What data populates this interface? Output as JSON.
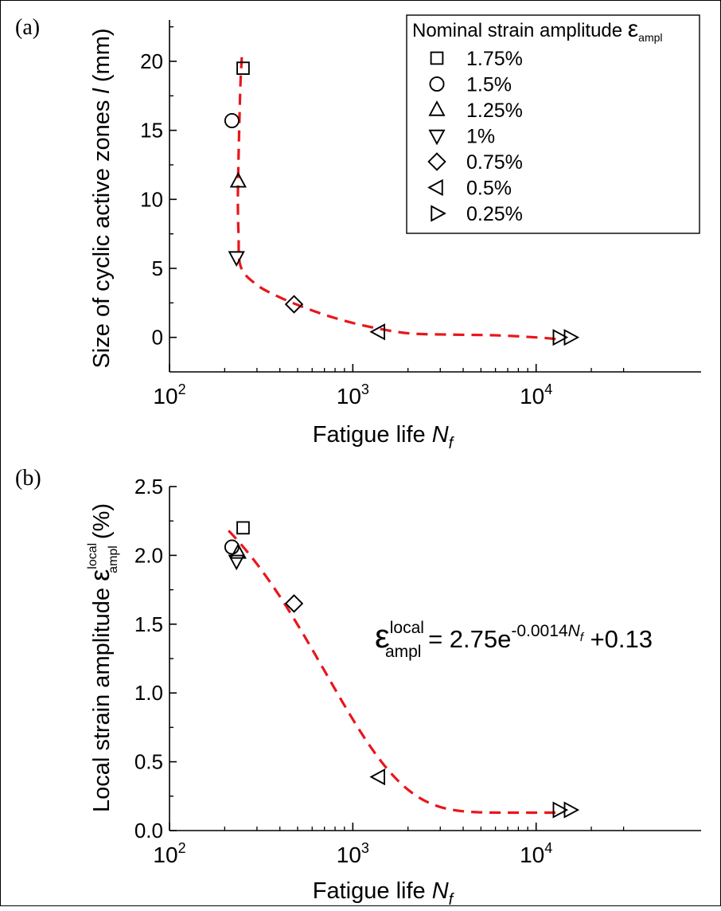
{
  "chart_data": [
    {
      "panel": "(a)",
      "type": "scatter",
      "xscale": "log",
      "xlim": [
        100,
        30000
      ],
      "ylim": [
        -2.5,
        23
      ],
      "xlabel": "Fatigue life",
      "xlabel_var": "N",
      "xlabel_sub": "f",
      "ylabel": "Size of cyclic active zones",
      "ylabel_var": "l",
      "ylabel_unit": "(mm)",
      "xticks": [
        100,
        1000,
        10000
      ],
      "xtick_labels": [
        {
          "base": "10",
          "exp": "2"
        },
        {
          "base": "10",
          "exp": "3"
        },
        {
          "base": "10",
          "exp": "4"
        }
      ],
      "yticks": [
        0,
        5,
        10,
        15,
        20
      ],
      "ytick_labels": [
        "0",
        "5",
        "10",
        "15",
        "20"
      ],
      "legend": {
        "title": "Nominal strain amplitude ",
        "title_symbol": "ε",
        "title_sub": "ampl",
        "placement": "top-right"
      },
      "series": [
        {
          "name": "1.75%",
          "marker": "square",
          "x": [
            252
          ],
          "y": [
            19.5
          ]
        },
        {
          "name": "1.5%",
          "marker": "circle",
          "x": [
            219
          ],
          "y": [
            15.7
          ]
        },
        {
          "name": "1.25%",
          "marker": "triangle-up",
          "x": [
            237
          ],
          "y": [
            11.3
          ]
        },
        {
          "name": "1%",
          "marker": "triangle-down",
          "x": [
            232
          ],
          "y": [
            5.8
          ]
        },
        {
          "name": "0.75%",
          "marker": "diamond",
          "x": [
            478
          ],
          "y": [
            2.4
          ]
        },
        {
          "name": "0.5%",
          "marker": "triangle-left",
          "x": [
            1390
          ],
          "y": [
            0.4
          ]
        },
        {
          "name": "0.25%",
          "marker": "triangle-right",
          "x": [
            13300,
            15300
          ],
          "y": [
            0,
            0
          ]
        }
      ],
      "fit": {
        "color": "#e8161b",
        "style": "dashed",
        "x": [
          248,
          244,
          241,
          238,
          236,
          238,
          245,
          300,
          400,
          560,
          800,
          1200,
          2000,
          3500,
          6000,
          10000,
          13500
        ],
        "y": [
          20.3,
          18.5,
          16.0,
          13.0,
          10.0,
          7.5,
          5.1,
          3.8,
          2.9,
          2.1,
          1.4,
          0.8,
          0.3,
          0.2,
          0.15,
          0,
          -0.15
        ]
      }
    },
    {
      "panel": "(b)",
      "type": "scatter",
      "xscale": "log",
      "xlim": [
        100,
        30000
      ],
      "ylim": [
        0,
        2.5
      ],
      "xlabel": "Fatigue life",
      "xlabel_var": "N",
      "xlabel_sub": "f",
      "ylabel": "Local strain amplitude ",
      "ylabel_symbol": "ε",
      "ylabel_sup": "local",
      "ylabel_sub": "ampl",
      "ylabel_unit": "(%)",
      "xticks": [
        100,
        1000,
        10000
      ],
      "xtick_labels": [
        {
          "base": "10",
          "exp": "2"
        },
        {
          "base": "10",
          "exp": "3"
        },
        {
          "base": "10",
          "exp": "4"
        }
      ],
      "yticks": [
        0,
        0.5,
        1.0,
        1.5,
        2.0,
        2.5
      ],
      "ytick_labels": [
        "0.0",
        "0.5",
        "1.0",
        "1.5",
        "2.0",
        "2.5"
      ],
      "annotation": {
        "symbol": "ε",
        "sup": "local",
        "sub": "ampl",
        "eq": " = 2.75e",
        "exp": "-0.0014",
        "exp_var": "N",
        "exp_sub": "f",
        "tail": " +0.13"
      },
      "series": [
        {
          "name": "1.75%",
          "marker": "square",
          "x": [
            252
          ],
          "y": [
            2.2
          ]
        },
        {
          "name": "1.5%",
          "marker": "circle",
          "x": [
            219
          ],
          "y": [
            2.06
          ]
        },
        {
          "name": "1.25%",
          "marker": "triangle-up",
          "x": [
            237
          ],
          "y": [
            2.02
          ]
        },
        {
          "name": "1%",
          "marker": "triangle-down",
          "x": [
            232
          ],
          "y": [
            1.96
          ]
        },
        {
          "name": "0.75%",
          "marker": "diamond",
          "x": [
            478
          ],
          "y": [
            1.65
          ]
        },
        {
          "name": "0.5%",
          "marker": "triangle-left",
          "x": [
            1390
          ],
          "y": [
            0.39
          ]
        },
        {
          "name": "0.25%",
          "marker": "triangle-right",
          "x": [
            13300,
            15300
          ],
          "y": [
            0.15,
            0.15
          ]
        }
      ],
      "fit": {
        "color": "#e8161b",
        "style": "dashed",
        "formula": {
          "a": 2.75,
          "b": -0.0014,
          "c": 0.13
        },
        "x_range": [
          210,
          14000
        ]
      }
    }
  ]
}
